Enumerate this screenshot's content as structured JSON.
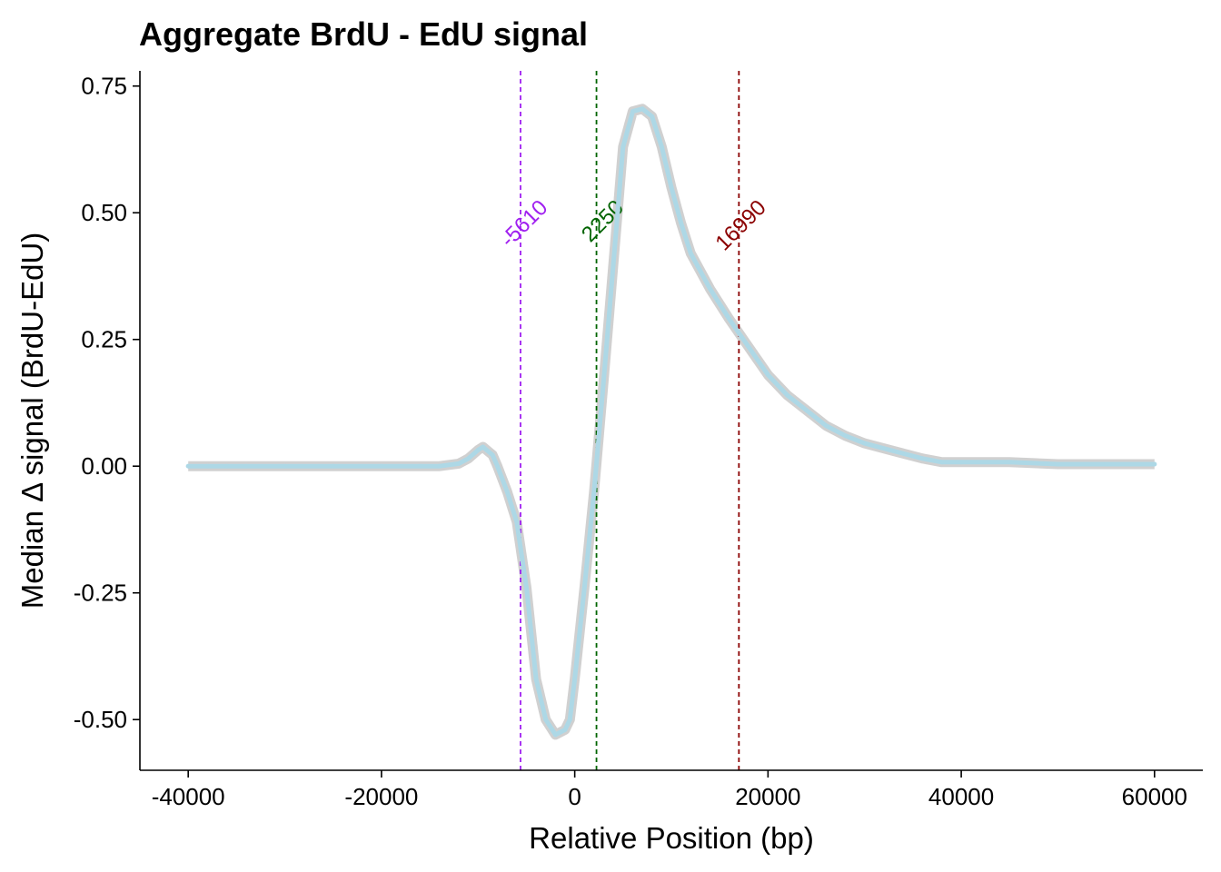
{
  "chart_data": {
    "type": "line",
    "title": "Aggregate BrdU - EdU signal",
    "xlabel": "Relative Position (bp)",
    "ylabel": "Median Δ signal (BrdU-EdU)",
    "xlim": [
      -45000,
      65000
    ],
    "ylim": [
      -0.6,
      0.78
    ],
    "x_ticks": [
      -40000,
      -20000,
      0,
      20000,
      40000,
      60000
    ],
    "x_tick_labels": [
      "-40000",
      "-20000",
      "0",
      "20000",
      "40000",
      "60000"
    ],
    "y_ticks": [
      0.75,
      0.5,
      0.25,
      0.0,
      -0.25,
      -0.5
    ],
    "y_tick_labels": [
      "0.75",
      "0.50",
      "0.25",
      "0.00",
      "-0.25",
      "-0.50"
    ],
    "grid": false,
    "legend": "none",
    "series": [
      {
        "color": "#add8e6",
        "ribbon_color": "#c0c0c0",
        "x": [
          -40000,
          -38000,
          -36000,
          -34000,
          -30000,
          -25000,
          -20000,
          -16000,
          -14000,
          -12000,
          -11000,
          -10000,
          -9500,
          -9000,
          -8500,
          -8000,
          -7000,
          -6000,
          -5000,
          -4000,
          -3000,
          -2000,
          -1000,
          -500,
          0,
          1000,
          2000,
          3000,
          4000,
          5000,
          6000,
          7000,
          8000,
          9000,
          10000,
          11000,
          12000,
          14000,
          16000,
          18000,
          20000,
          22000,
          24000,
          26000,
          28000,
          30000,
          33000,
          36000,
          38000,
          40000,
          45000,
          50000,
          55000,
          60000
        ],
        "y": [
          0.0,
          0.0,
          0.0,
          0.0,
          0.0,
          0.0,
          0.0,
          0.0,
          0.0,
          0.005,
          0.015,
          0.032,
          0.038,
          0.03,
          0.022,
          0.0,
          -0.05,
          -0.11,
          -0.24,
          -0.42,
          -0.5,
          -0.53,
          -0.52,
          -0.5,
          -0.42,
          -0.24,
          -0.05,
          0.17,
          0.4,
          0.63,
          0.7,
          0.705,
          0.69,
          0.63,
          0.55,
          0.48,
          0.42,
          0.35,
          0.29,
          0.235,
          0.18,
          0.14,
          0.11,
          0.08,
          0.06,
          0.045,
          0.03,
          0.015,
          0.008,
          0.008,
          0.008,
          0.004,
          0.004,
          0.004
        ]
      }
    ],
    "vlines": [
      {
        "x": -5610,
        "label": "-5610",
        "color": "#a020f0"
      },
      {
        "x": 2250,
        "label": "2250",
        "color": "#006400"
      },
      {
        "x": 16990,
        "label": "16990",
        "color": "#8b0000"
      }
    ]
  }
}
